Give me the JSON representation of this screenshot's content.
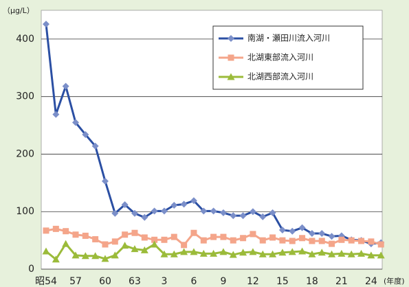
{
  "chart_data": {
    "type": "line",
    "y_label": "（μg/L）",
    "x_label": "(年度)",
    "categories": [
      "昭54",
      null,
      null,
      "57",
      null,
      null,
      "60",
      null,
      null,
      "63",
      null,
      null,
      "3",
      null,
      null,
      "6",
      null,
      null,
      "9",
      null,
      null,
      "12",
      null,
      null,
      "15",
      null,
      null,
      "18",
      null,
      null,
      "21",
      null,
      null,
      "24",
      null
    ],
    "series": [
      {
        "name": "南湖・瀬田川流入河川",
        "color": "#2b4fa3",
        "marker_color": "#7b8fc9",
        "marker": "diamond",
        "values": [
          426,
          269,
          318,
          255,
          234,
          214,
          153,
          97,
          112,
          97,
          90,
          101,
          101,
          111,
          113,
          119,
          101,
          101,
          98,
          93,
          93,
          100,
          91,
          98,
          68,
          66,
          72,
          62,
          62,
          57,
          58,
          51,
          50,
          44,
          46
        ]
      },
      {
        "name": "北湖東部流入河川",
        "color": "#f4a58a",
        "marker_color": "#f4a58a",
        "marker": "square",
        "values": [
          67,
          70,
          66,
          60,
          58,
          52,
          43,
          48,
          60,
          63,
          55,
          51,
          51,
          56,
          42,
          63,
          50,
          56,
          56,
          50,
          54,
          61,
          50,
          55,
          50,
          49,
          54,
          49,
          49,
          44,
          51,
          50,
          49,
          48,
          43
        ]
      },
      {
        "name": "北湖西部流入河川",
        "color": "#9bbb3a",
        "marker_color": "#9bbb3a",
        "marker": "triangle",
        "values": [
          31,
          17,
          44,
          24,
          23,
          23,
          18,
          24,
          41,
          35,
          33,
          43,
          26,
          26,
          30,
          30,
          27,
          27,
          30,
          25,
          29,
          30,
          26,
          26,
          29,
          30,
          31,
          26,
          29,
          26,
          27,
          26,
          27,
          24,
          24
        ]
      }
    ],
    "ylim": [
      0,
      450
    ],
    "yticks": [
      0,
      100,
      200,
      300,
      400
    ],
    "grid": true
  }
}
